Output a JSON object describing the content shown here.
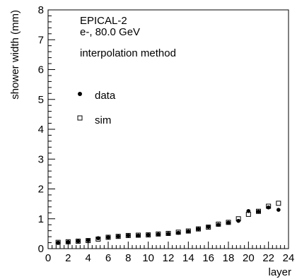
{
  "chart_data": {
    "type": "scatter",
    "title": "",
    "annotations": [
      "EPICAL-2",
      "e-, 80.0 GeV",
      "interpolation method"
    ],
    "xlabel": "layer",
    "ylabel": "shower width (mm)",
    "xlim": [
      0,
      24
    ],
    "ylim": [
      0,
      8
    ],
    "x_ticks": [
      0,
      2,
      4,
      6,
      8,
      10,
      12,
      14,
      16,
      18,
      20,
      22,
      24
    ],
    "y_ticks": [
      0,
      1,
      2,
      3,
      4,
      5,
      6,
      7,
      8
    ],
    "grid": false,
    "legend_position": "center-left",
    "series": [
      {
        "name": "data",
        "marker": "filled-circle",
        "color": "#000000",
        "x": [
          1,
          2,
          3,
          4,
          5,
          6,
          7,
          8,
          9,
          10,
          11,
          12,
          13,
          14,
          15,
          16,
          17,
          18,
          19,
          20,
          21,
          22,
          23
        ],
        "y": [
          0.2,
          0.22,
          0.25,
          0.28,
          0.35,
          0.38,
          0.41,
          0.44,
          0.44,
          0.46,
          0.48,
          0.5,
          0.53,
          0.58,
          0.66,
          0.73,
          0.8,
          0.87,
          0.93,
          1.26,
          1.24,
          1.38,
          1.3
        ]
      },
      {
        "name": "sim",
        "marker": "open-square",
        "color": "#000000",
        "x": [
          1,
          2,
          3,
          4,
          5,
          6,
          7,
          8,
          9,
          10,
          11,
          12,
          13,
          14,
          15,
          16,
          17,
          18,
          19,
          20,
          21,
          22,
          23
        ],
        "y": [
          0.21,
          0.23,
          0.25,
          0.27,
          0.32,
          0.38,
          0.41,
          0.44,
          0.45,
          0.46,
          0.49,
          0.51,
          0.55,
          0.59,
          0.66,
          0.72,
          0.82,
          0.88,
          1.0,
          1.15,
          1.25,
          1.42,
          1.52
        ]
      }
    ]
  }
}
